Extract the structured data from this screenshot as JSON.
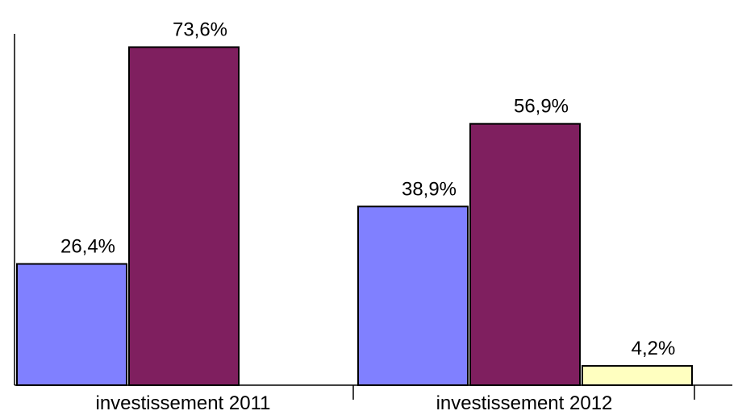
{
  "chart_data": {
    "type": "bar",
    "categories": [
      "investissement 2011",
      "investissement 2012"
    ],
    "series": [
      {
        "values": [
          26.4,
          38.9
        ],
        "labels": [
          "26,4%",
          "38,9%"
        ],
        "color": "#8080ff"
      },
      {
        "values": [
          73.6,
          56.9
        ],
        "labels": [
          "73,6%",
          "56,9%"
        ],
        "color": "#7f1f5f"
      },
      {
        "values": [
          null,
          4.2
        ],
        "labels": [
          null,
          "4,2%"
        ],
        "color": "#ffffc0"
      }
    ],
    "ylim": [
      0,
      80
    ],
    "grid": false,
    "legend": "none"
  }
}
